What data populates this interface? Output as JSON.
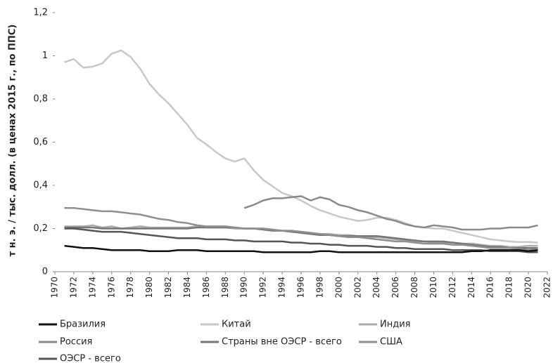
{
  "chart_data": {
    "type": "line",
    "y_label": "т н. э. / тыс. долл. (в ценах 2015 г., по ППС)",
    "x": [
      1971,
      1972,
      1973,
      1974,
      1975,
      1976,
      1977,
      1978,
      1979,
      1980,
      1981,
      1982,
      1983,
      1984,
      1985,
      1986,
      1987,
      1988,
      1989,
      1990,
      1991,
      1992,
      1993,
      1994,
      1995,
      1996,
      1997,
      1998,
      1999,
      2000,
      2001,
      2002,
      2003,
      2004,
      2005,
      2006,
      2007,
      2008,
      2009,
      2010,
      2011,
      2012,
      2013,
      2014,
      2015,
      2016,
      2017,
      2018,
      2019,
      2020,
      2021
    ],
    "xlim": [
      1970,
      2022
    ],
    "xticks": [
      1970,
      1972,
      1974,
      1976,
      1978,
      1980,
      1982,
      1984,
      1986,
      1988,
      1990,
      1992,
      1994,
      1996,
      1998,
      2000,
      2002,
      2004,
      2006,
      2008,
      2010,
      2012,
      2014,
      2016,
      2018,
      2020,
      2022
    ],
    "ylim": [
      0,
      1.2
    ],
    "yticks": [
      0,
      {
        "value": 0.2,
        "label": "0,2"
      },
      {
        "value": 0.4,
        "label": "0,4"
      },
      {
        "value": 0.6,
        "label": "0,6"
      },
      {
        "value": 0.8,
        "label": "0,8"
      },
      1,
      {
        "value": 1.2,
        "label": "1,2"
      }
    ],
    "grid": false,
    "series": [
      {
        "name": "Бразилия",
        "color": "#111111",
        "values": [
          0.12,
          0.115,
          0.11,
          0.11,
          0.105,
          0.1,
          0.1,
          0.1,
          0.1,
          0.095,
          0.095,
          0.095,
          0.1,
          0.1,
          0.1,
          0.095,
          0.095,
          0.095,
          0.095,
          0.095,
          0.095,
          0.09,
          0.09,
          0.09,
          0.09,
          0.09,
          0.09,
          0.095,
          0.095,
          0.09,
          0.09,
          0.09,
          0.09,
          0.09,
          0.09,
          0.09,
          0.09,
          0.09,
          0.09,
          0.09,
          0.09,
          0.09,
          0.09,
          0.095,
          0.095,
          0.1,
          0.1,
          0.1,
          0.1,
          0.095,
          0.1
        ]
      },
      {
        "name": "Китай",
        "color": "#c8c8c8",
        "values": [
          0.97,
          0.985,
          0.945,
          0.95,
          0.965,
          1.01,
          1.025,
          0.995,
          0.94,
          0.87,
          0.82,
          0.78,
          0.73,
          0.68,
          0.62,
          0.59,
          0.555,
          0.525,
          0.51,
          0.525,
          0.47,
          0.425,
          0.395,
          0.365,
          0.35,
          0.33,
          0.305,
          0.285,
          0.27,
          0.255,
          0.245,
          0.235,
          0.24,
          0.25,
          0.25,
          0.24,
          0.225,
          0.21,
          0.205,
          0.2,
          0.2,
          0.19,
          0.18,
          0.17,
          0.16,
          0.15,
          0.145,
          0.14,
          0.138,
          0.138,
          0.135
        ]
      },
      {
        "name": "Индия",
        "color": "#acacac",
        "values": [
          0.21,
          0.21,
          0.21,
          0.215,
          0.205,
          0.21,
          0.2,
          0.205,
          0.21,
          0.205,
          0.205,
          0.205,
          0.205,
          0.205,
          0.21,
          0.205,
          0.205,
          0.205,
          0.2,
          0.2,
          0.2,
          0.2,
          0.195,
          0.19,
          0.19,
          0.185,
          0.18,
          0.175,
          0.175,
          0.17,
          0.17,
          0.165,
          0.16,
          0.16,
          0.155,
          0.15,
          0.145,
          0.14,
          0.14,
          0.135,
          0.135,
          0.135,
          0.13,
          0.13,
          0.125,
          0.12,
          0.12,
          0.115,
          0.115,
          0.12,
          0.12
        ]
      },
      {
        "name": "Россия",
        "color": "#8a8a8a",
        "values": [
          null,
          null,
          null,
          null,
          null,
          null,
          null,
          null,
          null,
          null,
          null,
          null,
          null,
          null,
          null,
          null,
          null,
          null,
          null,
          0.295,
          0.31,
          0.33,
          0.34,
          0.34,
          0.345,
          0.35,
          0.33,
          0.345,
          0.335,
          0.31,
          0.3,
          0.285,
          0.275,
          0.26,
          0.245,
          0.235,
          0.22,
          0.21,
          0.205,
          0.215,
          0.21,
          0.205,
          0.195,
          0.195,
          0.195,
          0.2,
          0.2,
          0.205,
          0.205,
          0.205,
          0.215
        ]
      },
      {
        "name": "Страны вне ОЭСР - всего",
        "color": "#767676",
        "values": [
          0.205,
          0.205,
          0.205,
          0.205,
          0.2,
          0.2,
          0.2,
          0.2,
          0.2,
          0.2,
          0.2,
          0.2,
          0.2,
          0.2,
          0.205,
          0.205,
          0.205,
          0.205,
          0.205,
          0.2,
          0.2,
          0.195,
          0.19,
          0.19,
          0.185,
          0.18,
          0.175,
          0.17,
          0.17,
          0.165,
          0.165,
          0.165,
          0.165,
          0.165,
          0.16,
          0.155,
          0.15,
          0.145,
          0.14,
          0.14,
          0.14,
          0.135,
          0.13,
          0.125,
          0.12,
          0.115,
          0.115,
          0.11,
          0.11,
          0.11,
          0.11
        ]
      },
      {
        "name": "США",
        "color": "#8f8f8f",
        "values": [
          0.295,
          0.295,
          0.29,
          0.285,
          0.28,
          0.28,
          0.275,
          0.27,
          0.265,
          0.255,
          0.245,
          0.24,
          0.23,
          0.225,
          0.215,
          0.21,
          0.21,
          0.21,
          0.205,
          0.2,
          0.2,
          0.2,
          0.195,
          0.19,
          0.19,
          0.185,
          0.18,
          0.175,
          0.17,
          0.165,
          0.16,
          0.16,
          0.155,
          0.15,
          0.145,
          0.14,
          0.14,
          0.135,
          0.13,
          0.13,
          0.13,
          0.125,
          0.125,
          0.12,
          0.115,
          0.11,
          0.11,
          0.11,
          0.105,
          0.1,
          0.105
        ]
      },
      {
        "name": "ОЭСР - всего",
        "color": "#555555",
        "values": [
          0.2,
          0.2,
          0.195,
          0.19,
          0.185,
          0.185,
          0.185,
          0.18,
          0.175,
          0.17,
          0.165,
          0.16,
          0.155,
          0.155,
          0.155,
          0.15,
          0.15,
          0.15,
          0.145,
          0.145,
          0.14,
          0.14,
          0.14,
          0.14,
          0.135,
          0.135,
          0.13,
          0.13,
          0.125,
          0.125,
          0.12,
          0.12,
          0.12,
          0.115,
          0.115,
          0.11,
          0.11,
          0.105,
          0.105,
          0.105,
          0.105,
          0.1,
          0.1,
          0.1,
          0.1,
          0.095,
          0.095,
          0.095,
          0.095,
          0.09,
          0.09
        ]
      }
    ]
  }
}
